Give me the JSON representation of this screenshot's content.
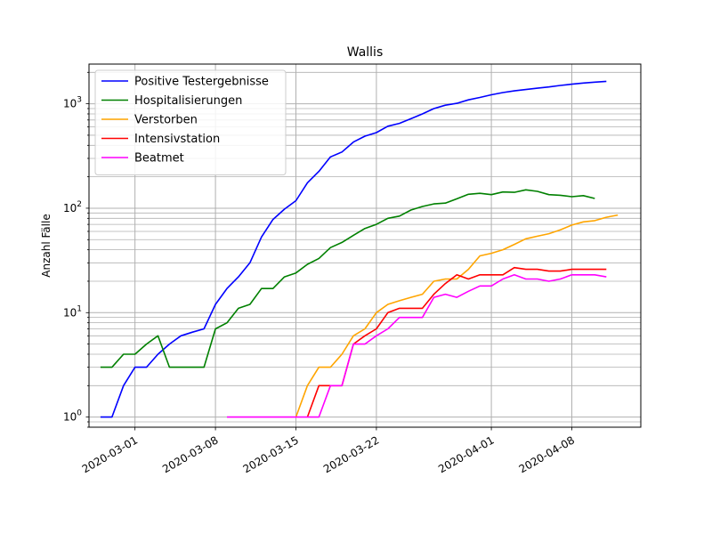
{
  "chart_data": {
    "type": "line",
    "title": "Wallis",
    "xlabel": "",
    "ylabel": "Anzahl Fälle",
    "yscale": "log",
    "xlim": [
      "2020-02-26",
      "2020-04-14"
    ],
    "ylim": [
      0.8,
      2400
    ],
    "grid": true,
    "legend_position": "top-left",
    "x_ticks": [
      "2020-03-01",
      "2020-03-08",
      "2020-03-15",
      "2020-03-22",
      "2020-04-01",
      "2020-04-08"
    ],
    "y_ticks": [
      {
        "value": 1,
        "label": "10",
        "exp": "0"
      },
      {
        "value": 10,
        "label": "10",
        "exp": "1"
      },
      {
        "value": 100,
        "label": "10",
        "exp": "2"
      },
      {
        "value": 1000,
        "label": "10",
        "exp": "3"
      }
    ],
    "series": [
      {
        "name": "Positive Testergebnisse",
        "color": "#0000ff",
        "points": [
          [
            "2020-02-27",
            1
          ],
          [
            "2020-02-28",
            1
          ],
          [
            "2020-02-29",
            2
          ],
          [
            "2020-03-01",
            3
          ],
          [
            "2020-03-02",
            3
          ],
          [
            "2020-03-03",
            4
          ],
          [
            "2020-03-04",
            5
          ],
          [
            "2020-03-05",
            6
          ],
          [
            "2020-03-06",
            6.5
          ],
          [
            "2020-03-07",
            7
          ],
          [
            "2020-03-08",
            12
          ],
          [
            "2020-03-09",
            17
          ],
          [
            "2020-03-10",
            22
          ],
          [
            "2020-03-11",
            30
          ],
          [
            "2020-03-12",
            53
          ],
          [
            "2020-03-13",
            78
          ],
          [
            "2020-03-14",
            98
          ],
          [
            "2020-03-15",
            118
          ],
          [
            "2020-03-16",
            175
          ],
          [
            "2020-03-17",
            225
          ],
          [
            "2020-03-18",
            310
          ],
          [
            "2020-03-19",
            345
          ],
          [
            "2020-03-20",
            430
          ],
          [
            "2020-03-21",
            490
          ],
          [
            "2020-03-22",
            530
          ],
          [
            "2020-03-23",
            610
          ],
          [
            "2020-03-24",
            650
          ],
          [
            "2020-03-25",
            720
          ],
          [
            "2020-03-26",
            800
          ],
          [
            "2020-03-27",
            900
          ],
          [
            "2020-03-28",
            970
          ],
          [
            "2020-03-29",
            1010
          ],
          [
            "2020-03-30",
            1090
          ],
          [
            "2020-03-31",
            1150
          ],
          [
            "2020-04-01",
            1220
          ],
          [
            "2020-04-02",
            1280
          ],
          [
            "2020-04-03",
            1330
          ],
          [
            "2020-04-04",
            1370
          ],
          [
            "2020-04-05",
            1410
          ],
          [
            "2020-04-06",
            1450
          ],
          [
            "2020-04-07",
            1500
          ],
          [
            "2020-04-08",
            1540
          ],
          [
            "2020-04-09",
            1580
          ],
          [
            "2020-04-10",
            1610
          ],
          [
            "2020-04-11",
            1640
          ]
        ]
      },
      {
        "name": "Hospitalisierungen",
        "color": "#008000",
        "points": [
          [
            "2020-02-27",
            3
          ],
          [
            "2020-02-28",
            3
          ],
          [
            "2020-02-29",
            4
          ],
          [
            "2020-03-01",
            4
          ],
          [
            "2020-03-02",
            5
          ],
          [
            "2020-03-03",
            6
          ],
          [
            "2020-03-04",
            3
          ],
          [
            "2020-03-05",
            3
          ],
          [
            "2020-03-06",
            3
          ],
          [
            "2020-03-07",
            3
          ],
          [
            "2020-03-08",
            7
          ],
          [
            "2020-03-09",
            8
          ],
          [
            "2020-03-10",
            11
          ],
          [
            "2020-03-11",
            12
          ],
          [
            "2020-03-12",
            17
          ],
          [
            "2020-03-13",
            17
          ],
          [
            "2020-03-14",
            22
          ],
          [
            "2020-03-15",
            24
          ],
          [
            "2020-03-16",
            29
          ],
          [
            "2020-03-17",
            33
          ],
          [
            "2020-03-18",
            42
          ],
          [
            "2020-03-19",
            47
          ],
          [
            "2020-03-20",
            55
          ],
          [
            "2020-03-21",
            64
          ],
          [
            "2020-03-22",
            70
          ],
          [
            "2020-03-23",
            80
          ],
          [
            "2020-03-24",
            84
          ],
          [
            "2020-03-25",
            96
          ],
          [
            "2020-03-26",
            104
          ],
          [
            "2020-03-27",
            110
          ],
          [
            "2020-03-28",
            112
          ],
          [
            "2020-03-29",
            123
          ],
          [
            "2020-03-30",
            136
          ],
          [
            "2020-03-31",
            139
          ],
          [
            "2020-04-01",
            135
          ],
          [
            "2020-04-02",
            143
          ],
          [
            "2020-04-03",
            142
          ],
          [
            "2020-04-04",
            150
          ],
          [
            "2020-04-05",
            145
          ],
          [
            "2020-04-06",
            135
          ],
          [
            "2020-04-07",
            133
          ],
          [
            "2020-04-08",
            129
          ],
          [
            "2020-04-09",
            132
          ],
          [
            "2020-04-10",
            124
          ]
        ]
      },
      {
        "name": "Verstorben",
        "color": "#ffa500",
        "points": [
          [
            "2020-03-15",
            1
          ],
          [
            "2020-03-16",
            2
          ],
          [
            "2020-03-17",
            3
          ],
          [
            "2020-03-18",
            3
          ],
          [
            "2020-03-19",
            4
          ],
          [
            "2020-03-20",
            6
          ],
          [
            "2020-03-21",
            7
          ],
          [
            "2020-03-22",
            10
          ],
          [
            "2020-03-23",
            12
          ],
          [
            "2020-03-24",
            13
          ],
          [
            "2020-03-25",
            14
          ],
          [
            "2020-03-26",
            15
          ],
          [
            "2020-03-27",
            20
          ],
          [
            "2020-03-28",
            21
          ],
          [
            "2020-03-29",
            21
          ],
          [
            "2020-03-30",
            26
          ],
          [
            "2020-03-31",
            35
          ],
          [
            "2020-04-01",
            37
          ],
          [
            "2020-04-02",
            40
          ],
          [
            "2020-04-03",
            45
          ],
          [
            "2020-04-04",
            51
          ],
          [
            "2020-04-05",
            54
          ],
          [
            "2020-04-06",
            57
          ],
          [
            "2020-04-07",
            62
          ],
          [
            "2020-04-08",
            69
          ],
          [
            "2020-04-09",
            74
          ],
          [
            "2020-04-10",
            76
          ],
          [
            "2020-04-11",
            82
          ],
          [
            "2020-04-12",
            86
          ]
        ]
      },
      {
        "name": "Intensivstation",
        "color": "#ff0000",
        "points": [
          [
            "2020-03-16",
            1
          ],
          [
            "2020-03-17",
            2
          ],
          [
            "2020-03-18",
            2
          ],
          [
            "2020-03-19",
            2
          ],
          [
            "2020-03-20",
            5
          ],
          [
            "2020-03-21",
            6
          ],
          [
            "2020-03-22",
            7
          ],
          [
            "2020-03-23",
            10
          ],
          [
            "2020-03-24",
            11
          ],
          [
            "2020-03-25",
            11
          ],
          [
            "2020-03-26",
            11
          ],
          [
            "2020-03-27",
            15
          ],
          [
            "2020-03-28",
            19
          ],
          [
            "2020-03-29",
            23
          ],
          [
            "2020-03-30",
            21
          ],
          [
            "2020-03-31",
            23
          ],
          [
            "2020-04-01",
            23
          ],
          [
            "2020-04-02",
            23
          ],
          [
            "2020-04-03",
            27
          ],
          [
            "2020-04-04",
            26
          ],
          [
            "2020-04-05",
            26
          ],
          [
            "2020-04-06",
            25
          ],
          [
            "2020-04-07",
            25
          ],
          [
            "2020-04-08",
            26
          ],
          [
            "2020-04-09",
            26
          ],
          [
            "2020-04-10",
            26
          ],
          [
            "2020-04-11",
            26
          ]
        ]
      },
      {
        "name": "Beatmet",
        "color": "#ff00ff",
        "points": [
          [
            "2020-03-09",
            1
          ],
          [
            "2020-03-10",
            1
          ],
          [
            "2020-03-11",
            1
          ],
          [
            "2020-03-12",
            1
          ],
          [
            "2020-03-13",
            1
          ],
          [
            "2020-03-14",
            1
          ],
          [
            "2020-03-15",
            1
          ],
          [
            "2020-03-16",
            1
          ],
          [
            "2020-03-17",
            1
          ],
          [
            "2020-03-18",
            2
          ],
          [
            "2020-03-19",
            2
          ],
          [
            "2020-03-20",
            5
          ],
          [
            "2020-03-21",
            5
          ],
          [
            "2020-03-22",
            6
          ],
          [
            "2020-03-23",
            7
          ],
          [
            "2020-03-24",
            9
          ],
          [
            "2020-03-25",
            9
          ],
          [
            "2020-03-26",
            9
          ],
          [
            "2020-03-27",
            14
          ],
          [
            "2020-03-28",
            15
          ],
          [
            "2020-03-29",
            14
          ],
          [
            "2020-03-30",
            16
          ],
          [
            "2020-03-31",
            18
          ],
          [
            "2020-04-01",
            18
          ],
          [
            "2020-04-02",
            21
          ],
          [
            "2020-04-03",
            23
          ],
          [
            "2020-04-04",
            21
          ],
          [
            "2020-04-05",
            21
          ],
          [
            "2020-04-06",
            20
          ],
          [
            "2020-04-07",
            21
          ],
          [
            "2020-04-08",
            23
          ],
          [
            "2020-04-09",
            23
          ],
          [
            "2020-04-10",
            23
          ],
          [
            "2020-04-11",
            22
          ]
        ]
      }
    ]
  }
}
